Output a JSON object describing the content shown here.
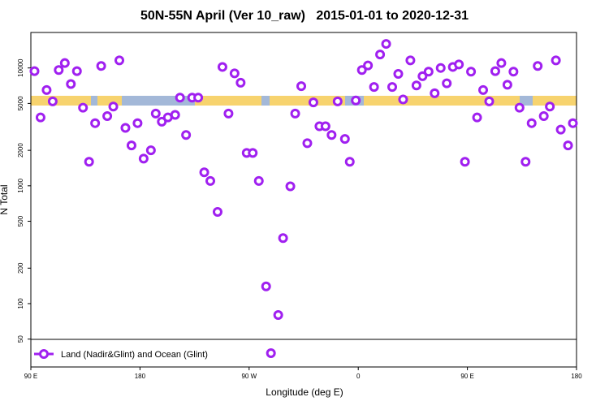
{
  "chart_data": {
    "type": "scatter",
    "title": "50N-55N April (Ver 10_raw)   2015-01-01 to 2020-12-31",
    "x_label": "Longitude (deg E)",
    "y_label": "N Total",
    "log_y": true,
    "legend": "bottom",
    "xlim": [
      90,
      540
    ],
    "xticks": [
      {
        "value": 90,
        "label": "90 E"
      },
      180,
      {
        "value": 270,
        "label": "90 W"
      },
      {
        "value": 360,
        "label": "0"
      },
      {
        "value": 450,
        "label": "90 E"
      },
      {
        "value": 540,
        "label": "180"
      }
    ],
    "ylim": [
      29,
      20000
    ],
    "yticks": [
      50,
      100,
      200,
      500,
      1000,
      2000,
      5000,
      10000
    ],
    "series": [
      {
        "name": "Land (Nadir&Glint) and Ocean (Glint)",
        "color": "#a020f0",
        "x": [
          93,
          98,
          103,
          108,
          113,
          118,
          123,
          128,
          133,
          138,
          143,
          148,
          153,
          158,
          163,
          168,
          173,
          178,
          183,
          189,
          193,
          198,
          203,
          209,
          213,
          218,
          223,
          228,
          233,
          238,
          244,
          248,
          253,
          258,
          263,
          268,
          273,
          278,
          284,
          288,
          294,
          298,
          304,
          308,
          313,
          318,
          323,
          328,
          333,
          338,
          343,
          349,
          353,
          358,
          363,
          368,
          373,
          378,
          383,
          388,
          393,
          397,
          403,
          408,
          413,
          418,
          423,
          428,
          433,
          438,
          443,
          448,
          453,
          458,
          463,
          468,
          473,
          478,
          483,
          488,
          493,
          498,
          503,
          508,
          513,
          518,
          523,
          527,
          533,
          537
        ],
        "values": [
          9400,
          3800,
          6500,
          5200,
          9600,
          11000,
          7300,
          9400,
          4600,
          1600,
          3400,
          10400,
          3900,
          4700,
          11600,
          3100,
          2200,
          3400,
          1700,
          2000,
          4100,
          3500,
          3800,
          4000,
          5600,
          2700,
          5600,
          5600,
          1300,
          1100,
          600,
          10200,
          4100,
          9000,
          7500,
          1900,
          1900,
          1100,
          140,
          38,
          80,
          360,
          990,
          4100,
          7000,
          2300,
          5100,
          3200,
          3200,
          2700,
          5200,
          2500,
          1600,
          5300,
          9600,
          10500,
          6900,
          13000,
          16000,
          6900,
          8900,
          5400,
          11600,
          7100,
          8500,
          9300,
          6100,
          10000,
          7400,
          10200,
          10700,
          1600,
          9300,
          3800,
          6500,
          5200,
          9400,
          11000,
          7200,
          9300,
          4600,
          1600,
          3400,
          10400,
          3900,
          4700,
          11600,
          3000,
          2200,
          3400
        ]
      }
    ]
  }
}
